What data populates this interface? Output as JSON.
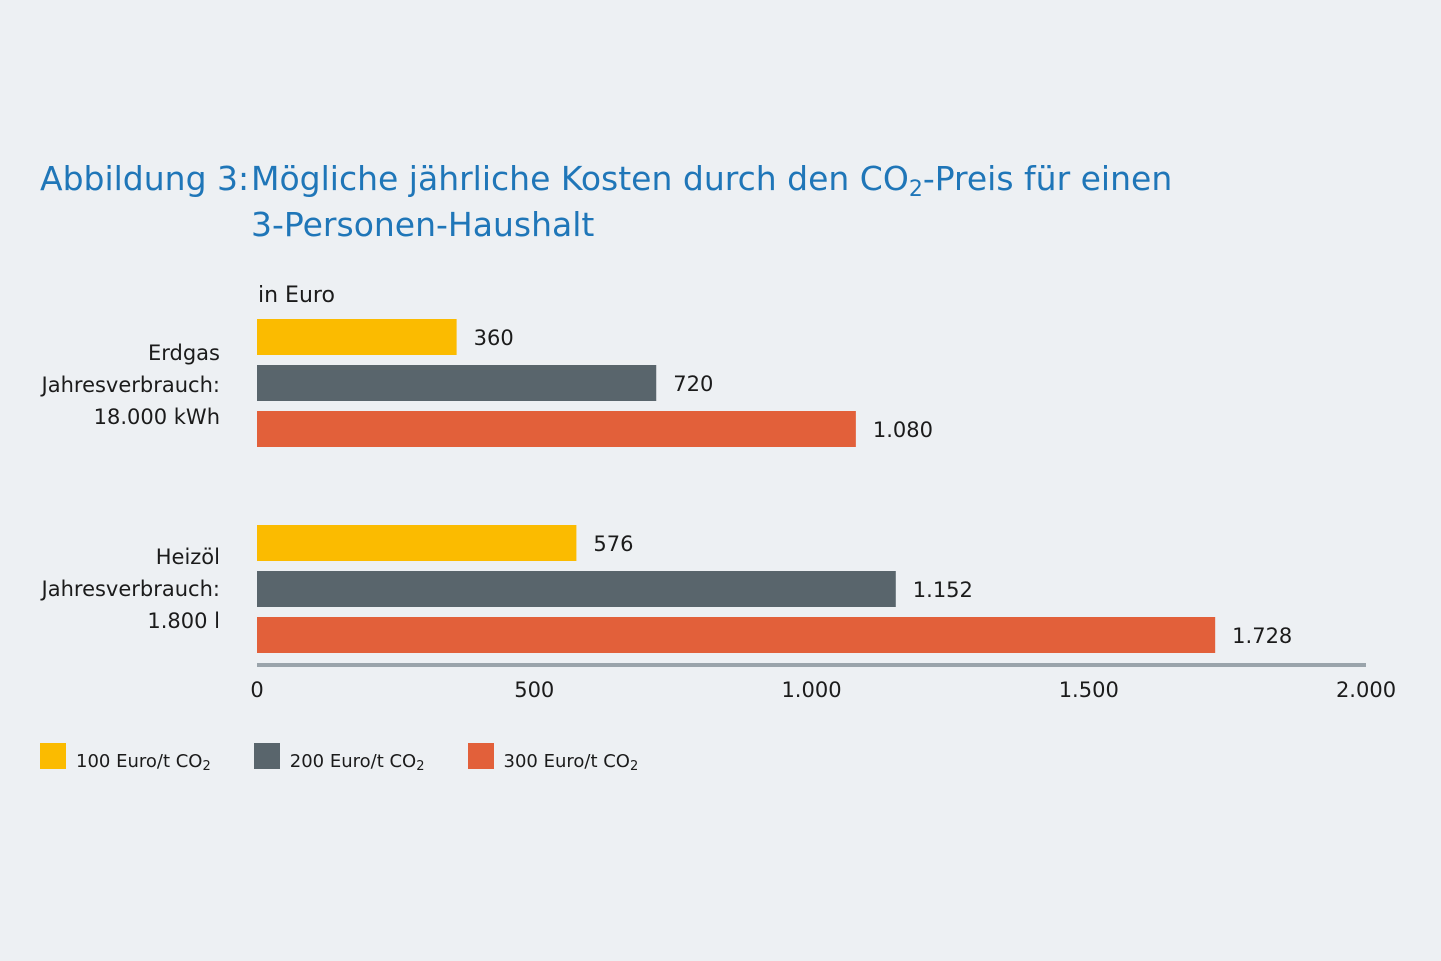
{
  "title": {
    "prefix": "Abbildung 3:",
    "line1_before_sub": "Mögliche jährliche Kosten durch den CO",
    "line1_sub": "2",
    "line1_after_sub": "-Preis für einen",
    "line2": "3-Personen-Haushalt"
  },
  "chart_data": {
    "type": "bar",
    "orientation": "horizontal",
    "unit_label": "in Euro",
    "categories": [
      {
        "lines": [
          "Erdgas",
          "Jahresverbrauch:",
          "18.000 kWh"
        ]
      },
      {
        "lines": [
          "Heizöl",
          "Jahresverbrauch:",
          "1.800 l"
        ]
      }
    ],
    "series": [
      {
        "name": "100 Euro/t CO",
        "name_sub": "2",
        "color": "#fbbb00",
        "values": [
          360,
          576
        ],
        "labels": [
          "360",
          "576"
        ]
      },
      {
        "name": "200 Euro/t CO",
        "name_sub": "2",
        "color": "#59656c",
        "values": [
          720,
          1152
        ],
        "labels": [
          "720",
          "1.152"
        ]
      },
      {
        "name": "300 Euro/t CO",
        "name_sub": "2",
        "color": "#e2603a",
        "values": [
          1080,
          1728
        ],
        "labels": [
          "1.080",
          "1.728"
        ]
      }
    ],
    "xlim": [
      0,
      2000
    ],
    "xticks": [
      0,
      500,
      1000,
      1500,
      2000
    ],
    "xtick_labels": [
      "0",
      "500",
      "1.000",
      "1.500",
      "2.000"
    ],
    "grid": false,
    "legend_position": "bottom-left"
  }
}
